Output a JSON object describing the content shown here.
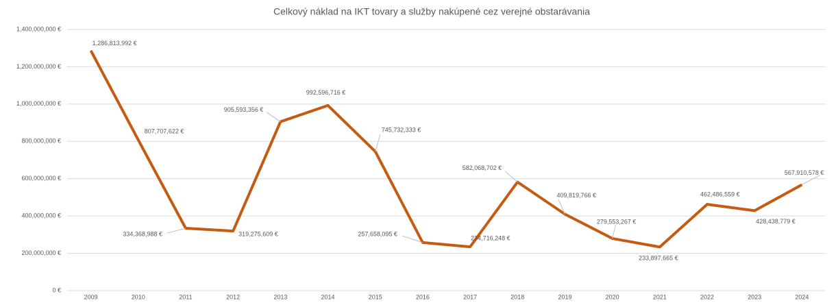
{
  "chart_data": {
    "type": "line",
    "title": "Celkový náklad na IKT tovary a služby nakúpené cez verejné obstarávania",
    "categories": [
      "2009",
      "2010",
      "2011",
      "2012",
      "2013",
      "2014",
      "2015",
      "2016",
      "2017",
      "2018",
      "2019",
      "2020",
      "2021",
      "2022",
      "2023",
      "2024"
    ],
    "series": [
      {
        "name": "Celkový náklad",
        "color": "#c55a11",
        "values": [
          1286813992,
          807707622,
          334368988,
          319275609,
          905593356,
          992596716,
          745732333,
          257658095,
          234716248,
          582068702,
          409819766,
          279553267,
          233897665,
          462486559,
          428438779,
          567910578
        ],
        "value_labels": [
          "1,286,813,992 €",
          "807,707,622 €",
          "334,368,988 €",
          "319,275,609 €",
          "905,593,356 €",
          "992,596,716 €",
          "745,732,333 €",
          "257,658,095 €",
          "234,716,248 €",
          "582,068,702 €",
          "409,819,766 €",
          "279,553,267 €",
          "233,897,665 €",
          "462,486,559 €",
          "428,438,779 €",
          "567,910,578 €"
        ]
      }
    ],
    "ylim": [
      0,
      1400000000
    ],
    "yticks": [
      {
        "value": 0,
        "label": "0 €"
      },
      {
        "value": 200000000,
        "label": "200,000,000 €"
      },
      {
        "value": 400000000,
        "label": "400,000,000 €"
      },
      {
        "value": 600000000,
        "label": "600,000,000 €"
      },
      {
        "value": 800000000,
        "label": "800,000,000 €"
      },
      {
        "value": 1000000000,
        "label": "1,000,000,000 €"
      },
      {
        "value": 1200000000,
        "label": "1,200,000,000 €"
      },
      {
        "value": 1400000000,
        "label": "1,400,000,000 €"
      }
    ],
    "grid": true
  }
}
